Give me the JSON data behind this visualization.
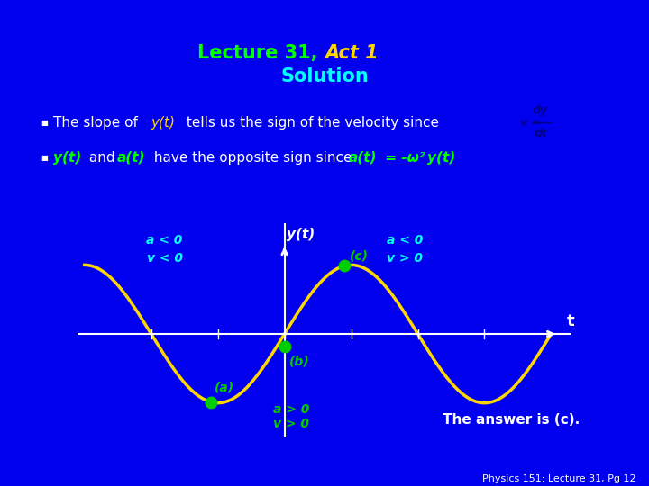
{
  "title_line1": "Lecture 31, ",
  "title_act": "Act 1",
  "title_line2": "Solution",
  "slide_bg": "#000099",
  "outer_bg": "#0000EE",
  "bullet1_text": "The slope of ",
  "bullet1_yt": "y(t)",
  "bullet1_rest": " tells us the sign of the velocity since",
  "bullet2_yt": "y(t)",
  "bullet2_and": " and ",
  "bullet2_at": "a(t)",
  "bullet2_rest": " have the opposite sign since ",
  "bullet2_at2": "a(t)",
  "bullet2_eq": " = -ω² ",
  "bullet2_yt2": "y(t)",
  "label_a_left1": "a < 0",
  "label_v_left1": "v < 0",
  "label_a_right": "a < 0",
  "label_v_right": "v > 0",
  "label_yt": "y(t)",
  "label_t": "t",
  "label_a": "(a)",
  "label_b": "(b)",
  "label_c": "(c)",
  "label_ab": "a > 0",
  "label_vb": "v > 0",
  "answer": "The answer is (c).",
  "footer": "Physics 151: Lecture 31, Pg 12",
  "curve_color": "#FFD700",
  "point_color": "#00CC00",
  "axis_color": "#FFFFFF",
  "text_color": "#FFFFFF",
  "title1_color": "#00FF00",
  "title_act_color": "#FFD700",
  "title2_color": "#00FFFF",
  "green_color": "#00FF00",
  "cyan_color": "#00FFFF",
  "label_color": "#00FFFF",
  "answer_color": "#FFFFFF",
  "footer_color": "#FFFFFF",
  "dy_color": "#000088"
}
